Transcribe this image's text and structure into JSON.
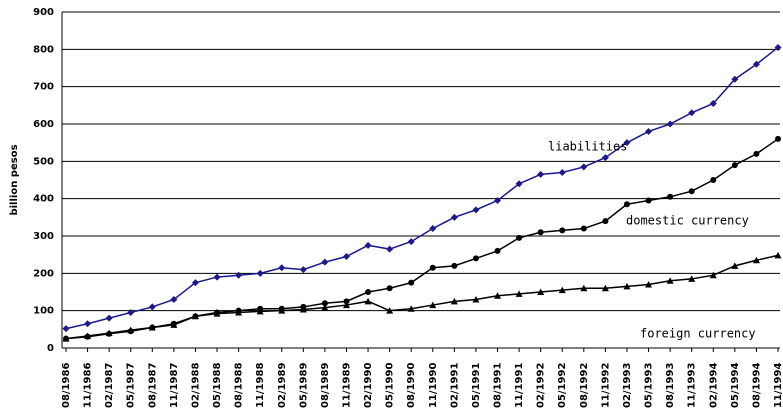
{
  "chart_data": {
    "type": "line",
    "y_label": "billion pesos",
    "categories": [
      "08/1986",
      "11/1986",
      "02/1987",
      "05/1987",
      "08/1987",
      "11/1987",
      "02/1988",
      "05/1988",
      "08/1988",
      "11/1988",
      "02/1989",
      "05/1989",
      "08/1989",
      "11/1989",
      "02/1990",
      "05/1990",
      "08/1990",
      "11/1990",
      "02/1991",
      "05/1991",
      "08/1991",
      "11/1991",
      "02/1992",
      "05/1992",
      "08/1992",
      "11/1992",
      "02/1993",
      "05/1993",
      "08/1993",
      "11/1993",
      "02/1994",
      "05/1994",
      "08/1994",
      "11/1994"
    ],
    "series": [
      {
        "name": "liabilities",
        "color": "#1a1a8c",
        "marker": "diamond",
        "values": [
          52,
          65,
          80,
          95,
          110,
          130,
          175,
          190,
          195,
          200,
          215,
          210,
          230,
          245,
          275,
          265,
          285,
          320,
          350,
          370,
          395,
          440,
          465,
          470,
          485,
          510,
          550,
          580,
          600,
          630,
          655,
          720,
          760,
          805
        ]
      },
      {
        "name": "domestic currency",
        "color": "#000000",
        "marker": "circle",
        "values": [
          25,
          30,
          38,
          45,
          55,
          65,
          85,
          95,
          100,
          105,
          105,
          110,
          120,
          125,
          150,
          160,
          175,
          215,
          220,
          240,
          260,
          295,
          310,
          315,
          320,
          340,
          385,
          395,
          405,
          420,
          450,
          490,
          520,
          560
        ]
      },
      {
        "name": "foreign currency",
        "color": "#000000",
        "marker": "triangle",
        "values": [
          25,
          32,
          40,
          48,
          55,
          62,
          85,
          92,
          95,
          98,
          100,
          103,
          108,
          115,
          125,
          100,
          105,
          115,
          125,
          130,
          140,
          145,
          150,
          155,
          160,
          160,
          165,
          170,
          180,
          185,
          195,
          220,
          235,
          248
        ]
      }
    ],
    "ylim": [
      0,
      900
    ],
    "yticks": [
      0,
      100,
      200,
      300,
      400,
      500,
      600,
      700,
      800,
      900
    ],
    "grid": true
  }
}
